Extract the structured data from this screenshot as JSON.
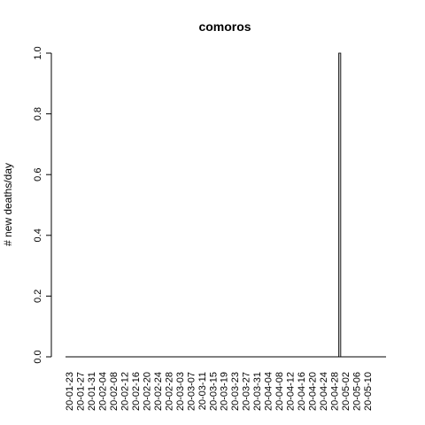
{
  "chart_data": {
    "type": "bar",
    "title": "comoros",
    "xlabel": "",
    "ylabel": "# new deaths/day",
    "ylim": [
      0,
      1
    ],
    "y_ticks": [
      "0.0",
      "0.2",
      "0.4",
      "0.6",
      "0.8",
      "1.0"
    ],
    "x_tick_labels": [
      "20-01-23",
      "20-01-27",
      "20-01-31",
      "20-02-04",
      "20-02-08",
      "20-02-12",
      "20-02-16",
      "20-02-20",
      "20-02-24",
      "20-02-28",
      "20-03-03",
      "20-03-07",
      "20-03-11",
      "20-03-15",
      "20-03-19",
      "20-03-23",
      "20-03-27",
      "20-03-31",
      "20-04-04",
      "20-04-08",
      "20-04-12",
      "20-04-16",
      "20-04-20",
      "20-04-24",
      "20-04-28",
      "20-05-02",
      "20-05-06",
      "20-05-10"
    ],
    "x_start": "2020-01-22",
    "x_end": "2020-05-11",
    "series": [
      {
        "values_by_date": {
          "2020-04-30": 1
        },
        "default": 0
      }
    ],
    "grid": false,
    "legend": "none"
  }
}
